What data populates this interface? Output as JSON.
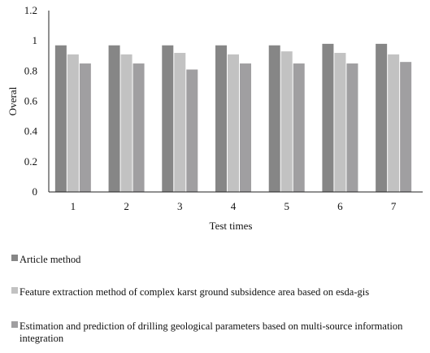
{
  "chart_data": {
    "type": "bar",
    "categories": [
      "1",
      "2",
      "3",
      "4",
      "5",
      "6",
      "7"
    ],
    "series": [
      {
        "name": "Article method",
        "values": [
          0.97,
          0.97,
          0.97,
          0.97,
          0.97,
          0.98,
          0.98
        ],
        "color": "#868686"
      },
      {
        "name": "Feature extraction method of complex karst ground subsidence area based on esda-gis",
        "values": [
          0.91,
          0.91,
          0.92,
          0.91,
          0.93,
          0.92,
          0.91
        ],
        "color": "#c2c2c2"
      },
      {
        "name": "Estimation and prediction of drilling geological parameters based on multi-source information integration",
        "values": [
          0.85,
          0.85,
          0.81,
          0.85,
          0.85,
          0.85,
          0.86
        ],
        "color": "#a09fa1"
      }
    ],
    "xlabel": "Test times",
    "ylabel": "Overal",
    "ylim": [
      0,
      1.2
    ],
    "yticks": [
      "0",
      "0.2",
      "0.4",
      "0.6",
      "0.8",
      "1",
      "1.2"
    ],
    "grid": false,
    "legend_position": "bottom"
  }
}
